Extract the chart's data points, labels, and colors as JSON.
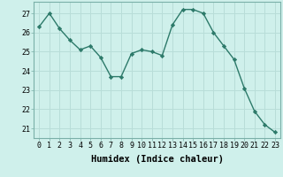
{
  "x": [
    0,
    1,
    2,
    3,
    4,
    5,
    6,
    7,
    8,
    9,
    10,
    11,
    12,
    13,
    14,
    15,
    16,
    17,
    18,
    19,
    20,
    21,
    22,
    23
  ],
  "y": [
    26.3,
    27.0,
    26.2,
    25.6,
    25.1,
    25.3,
    24.7,
    23.7,
    23.7,
    24.9,
    25.1,
    25.0,
    24.8,
    26.4,
    27.2,
    27.2,
    27.0,
    26.0,
    25.3,
    24.6,
    23.1,
    21.9,
    21.2,
    20.8
  ],
  "line_color": "#2d7a6a",
  "marker": "D",
  "marker_size": 2.2,
  "bg_color": "#cff0eb",
  "grid_color": "#b8ddd8",
  "xlabel": "Humidex (Indice chaleur)",
  "xlabel_fontsize": 7.5,
  "ylim": [
    20.5,
    27.6
  ],
  "yticks": [
    21,
    22,
    23,
    24,
    25,
    26,
    27
  ],
  "xlim": [
    -0.5,
    23.5
  ],
  "xticks": [
    0,
    1,
    2,
    3,
    4,
    5,
    6,
    7,
    8,
    9,
    10,
    11,
    12,
    13,
    14,
    15,
    16,
    17,
    18,
    19,
    20,
    21,
    22,
    23
  ],
  "tick_fontsize": 6.0,
  "lw": 1.0
}
